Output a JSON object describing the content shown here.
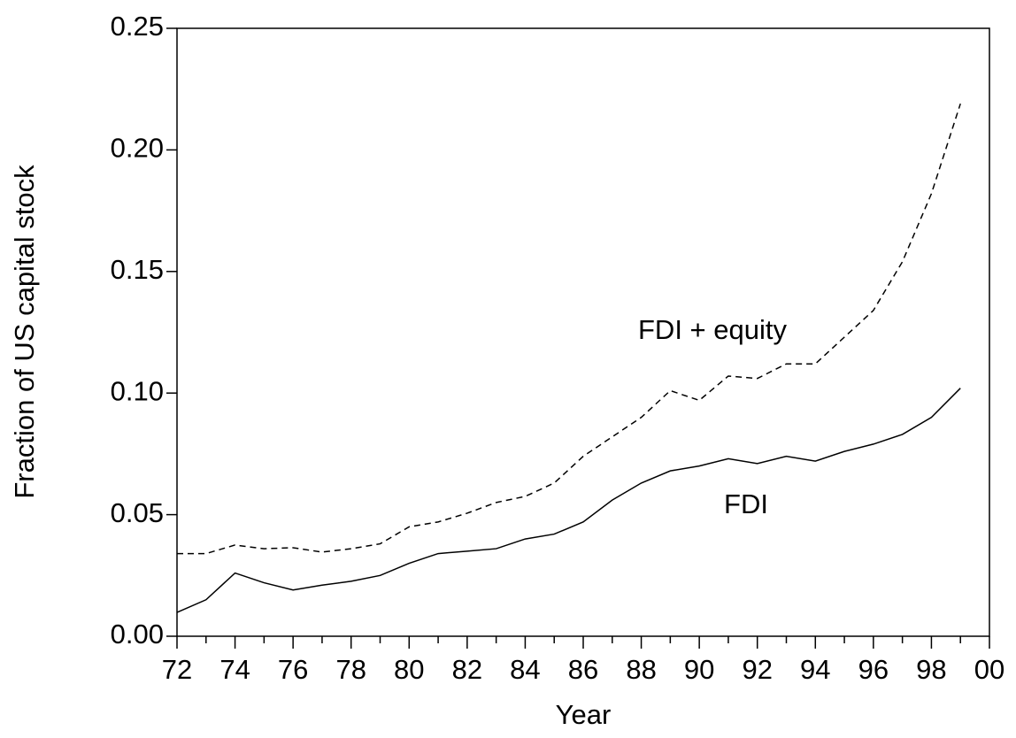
{
  "chart_data": {
    "type": "line",
    "x_label": "Year",
    "y_label": "Fraction of US capital stock",
    "x": [
      72,
      73,
      74,
      75,
      76,
      77,
      78,
      79,
      80,
      81,
      82,
      83,
      84,
      85,
      86,
      87,
      88,
      89,
      90,
      91,
      92,
      93,
      94,
      95,
      96,
      97,
      98,
      99
    ],
    "series": [
      {
        "name": "FDI + equity",
        "color": "#000000",
        "dash": "dashed",
        "values": [
          0.034,
          0.034,
          0.0375,
          0.036,
          0.0364,
          0.0346,
          0.036,
          0.038,
          0.045,
          0.047,
          0.0506,
          0.055,
          0.0575,
          0.063,
          0.074,
          0.082,
          0.09,
          0.101,
          0.097,
          0.107,
          0.106,
          0.112,
          0.112,
          0.123,
          0.134,
          0.154,
          0.182,
          0.219
        ]
      },
      {
        "name": "FDI",
        "color": "#000000",
        "dash": "solid",
        "values": [
          0.0098,
          0.015,
          0.026,
          0.022,
          0.019,
          0.021,
          0.0226,
          0.025,
          0.03,
          0.034,
          0.035,
          0.036,
          0.04,
          0.042,
          0.047,
          0.056,
          0.063,
          0.068,
          0.07,
          0.073,
          0.071,
          0.074,
          0.072,
          0.076,
          0.079,
          0.083,
          0.09,
          0.102
        ]
      }
    ],
    "xlim": [
      72,
      100
    ],
    "xticks": [
      72,
      74,
      76,
      78,
      80,
      82,
      84,
      86,
      88,
      90,
      92,
      94,
      96,
      98,
      {
        "value": 100,
        "label": "00"
      }
    ],
    "ylim": [
      0,
      0.25
    ],
    "yticks": [
      {
        "value": 0,
        "label": "0.00"
      },
      0.05,
      {
        "value": 0.1,
        "label": "0.10"
      },
      0.15,
      {
        "value": 0.2,
        "label": "0.20"
      },
      0.25
    ],
    "grid": false
  }
}
